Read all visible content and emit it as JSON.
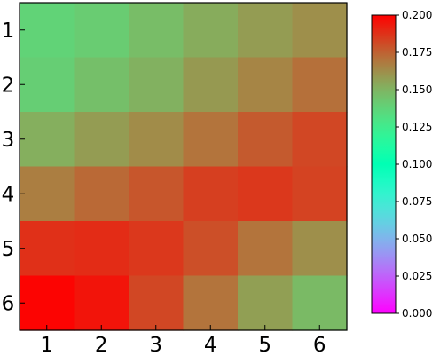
{
  "chart_data": {
    "type": "heatmap",
    "title": "",
    "xlabel": "",
    "ylabel": "",
    "x_categories": [
      "1",
      "2",
      "3",
      "4",
      "5",
      "6"
    ],
    "y_categories": [
      "1",
      "2",
      "3",
      "4",
      "5",
      "6"
    ],
    "values": [
      [
        0.138,
        0.141,
        0.147,
        0.153,
        0.158,
        0.162
      ],
      [
        0.14,
        0.146,
        0.151,
        0.159,
        0.165,
        0.171
      ],
      [
        0.152,
        0.158,
        0.163,
        0.17,
        0.177,
        0.182
      ],
      [
        0.167,
        0.173,
        0.178,
        0.184,
        0.186,
        0.183
      ],
      [
        0.188,
        0.189,
        0.186,
        0.18,
        0.17,
        0.162
      ],
      [
        0.199,
        0.195,
        0.182,
        0.17,
        0.157,
        0.148
      ]
    ],
    "colormap": "rainbow",
    "colorbar": {
      "vmin": 0.0,
      "vmax": 0.2,
      "ticks": [
        "0.000",
        "0.025",
        "0.050",
        "0.075",
        "0.100",
        "0.125",
        "0.150",
        "0.175",
        "0.200"
      ],
      "placement": "right"
    }
  }
}
